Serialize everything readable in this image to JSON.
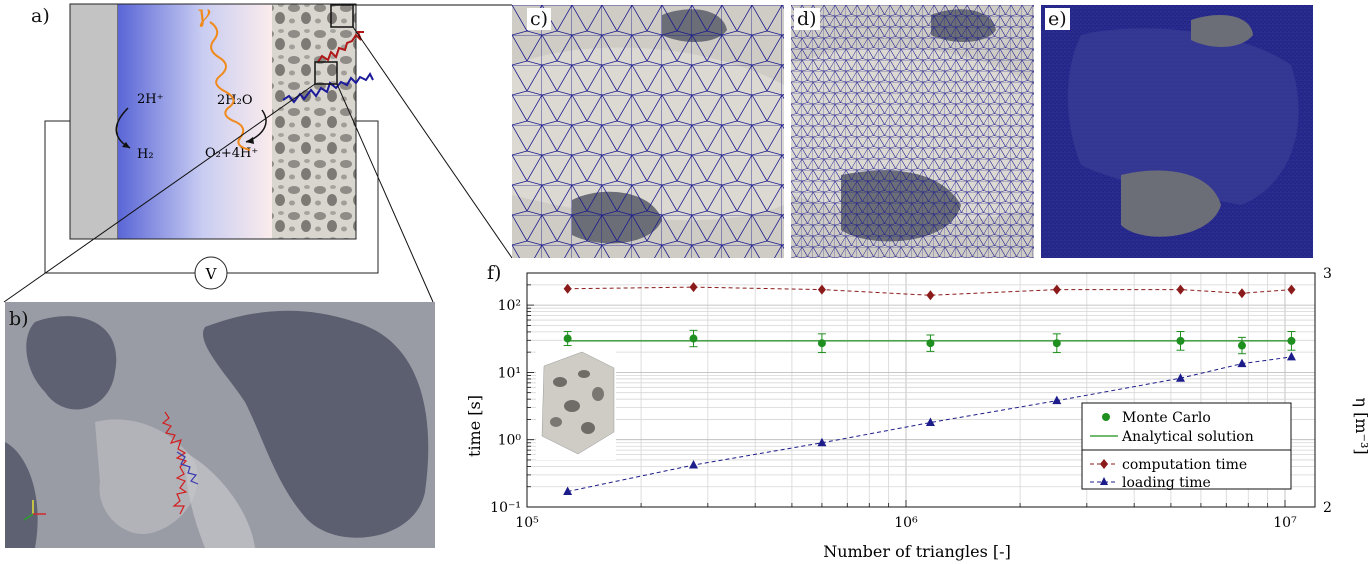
{
  "panels": {
    "a": "a)",
    "b": "b)",
    "c": "c)",
    "d": "d)",
    "e": "e)",
    "f": "f)"
  },
  "schematic": {
    "reaction_left_top": "2H⁺",
    "reaction_left_bottom": "H₂",
    "reaction_right_top": "2H₂O",
    "reaction_right_bottom": "O₂+4H⁺",
    "photon_symbol": "γ",
    "voltmeter": "V"
  },
  "colors": {
    "electrolyte_blue": "#5a66d6",
    "electrode_gray": "#c3c3c3",
    "photon_orange": "#f08a1c",
    "walk_red": "#b01818",
    "walk_blue": "#1a1a9a",
    "mesh_blue": "#1a1a8c",
    "surface_gray": "#d9d6d0",
    "mc_green": "#1f8f1f",
    "computation_red": "#8b1a1a",
    "loading_blue": "#1c1c8a"
  },
  "chart_data": {
    "type": "scatter",
    "title": "",
    "xlabel": "Number of triangles [-]",
    "ylabel": "time [s]",
    "y2label": "η [m⁻³]",
    "xscale": "log",
    "yscale": "log",
    "xlim": [
      100000,
      12000000
    ],
    "ylim": [
      0.1,
      300
    ],
    "y2lim": [
      2,
      3
    ],
    "grid": true,
    "legend_position": "center-right",
    "x_ticks": [
      "10⁵",
      "10⁶",
      "10⁷"
    ],
    "y_ticks": [
      "10⁻¹",
      "10⁰",
      "10¹",
      "10²"
    ],
    "y2_ticks": [
      "2",
      "3"
    ],
    "x": [
      128000,
      275000,
      600000,
      1160000,
      2500000,
      5300000,
      7700000,
      10400000
    ],
    "series": [
      {
        "name": "Monte Carlo",
        "axis": "right",
        "marker": "circle",
        "color": "#1f8f1f",
        "values": [
          2.72,
          2.72,
          2.7,
          2.7,
          2.7,
          2.71,
          2.69,
          2.71
        ],
        "errors": [
          0.03,
          0.035,
          0.04,
          0.035,
          0.04,
          0.04,
          0.035,
          0.04
        ]
      },
      {
        "name": "Analytical solution",
        "axis": "right",
        "line": "solid",
        "color": "#1f8f1f",
        "values": [
          2.71,
          2.71,
          2.71,
          2.71,
          2.71,
          2.71,
          2.71,
          2.71
        ]
      },
      {
        "name": "computation time",
        "axis": "left",
        "marker": "diamond",
        "line": "dashed",
        "color": "#8b1a1a",
        "values": [
          175,
          185,
          170,
          140,
          170,
          170,
          150,
          170
        ]
      },
      {
        "name": "loading time",
        "axis": "left",
        "marker": "triangle",
        "line": "dashed",
        "color": "#1c1c8a",
        "values": [
          0.17,
          0.42,
          0.9,
          1.8,
          3.8,
          8.2,
          13.5,
          17
        ]
      }
    ]
  }
}
